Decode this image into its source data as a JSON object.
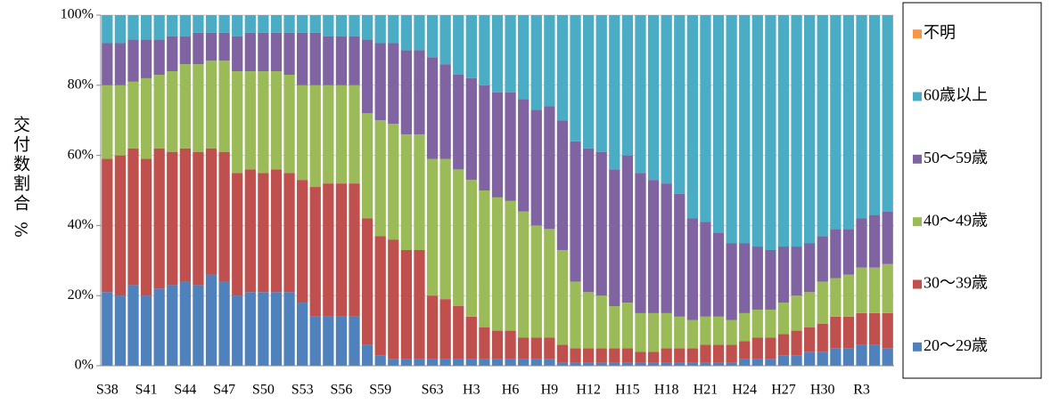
{
  "chart_data": {
    "type": "stacked-bar",
    "y_label": "交付数割合 %",
    "categories": [
      "S38",
      null,
      null,
      "S41",
      null,
      null,
      "S44",
      null,
      null,
      "S47",
      null,
      null,
      "S50",
      null,
      null,
      "S53",
      null,
      null,
      "S56",
      null,
      null,
      "S59",
      null,
      null,
      null,
      "S63",
      null,
      null,
      "H3",
      null,
      null,
      "H6",
      null,
      null,
      "H9",
      null,
      null,
      "H12",
      null,
      null,
      "H15",
      null,
      null,
      "H18",
      null,
      null,
      "H21",
      null,
      null,
      "H24",
      null,
      null,
      "H27",
      null,
      null,
      "H30",
      null,
      null,
      "R3",
      null,
      null
    ],
    "series": [
      {
        "name": "20～29歳",
        "color": "#4f81bd",
        "values": [
          21,
          20,
          23,
          20,
          22,
          23,
          24,
          23,
          26,
          24,
          20,
          21,
          21,
          21,
          21,
          18,
          14,
          14,
          14,
          14,
          6,
          3,
          2,
          2,
          2,
          2,
          2,
          2,
          2,
          2,
          2,
          2,
          2,
          2,
          2,
          1,
          1,
          1,
          1,
          1,
          1,
          1,
          1,
          1,
          1,
          1,
          1,
          1,
          1,
          2,
          2,
          2,
          3,
          3,
          4,
          4,
          5,
          5,
          6,
          6,
          5
        ]
      },
      {
        "name": "30～39歳",
        "color": "#c0504d",
        "values": [
          38,
          40,
          39,
          39,
          40,
          38,
          38,
          38,
          36,
          37,
          35,
          35,
          34,
          35,
          34,
          35,
          37,
          38,
          38,
          38,
          36,
          34,
          34,
          31,
          31,
          18,
          17,
          15,
          12,
          9,
          8,
          8,
          6,
          6,
          6,
          5,
          4,
          4,
          4,
          4,
          4,
          3,
          3,
          4,
          4,
          4,
          5,
          5,
          5,
          5,
          6,
          6,
          6,
          7,
          7,
          8,
          9,
          9,
          9,
          9,
          10
        ]
      },
      {
        "name": "40～49歳",
        "color": "#9bbb59",
        "values": [
          21,
          20,
          19,
          23,
          21,
          23,
          24,
          25,
          25,
          26,
          29,
          28,
          29,
          28,
          28,
          27,
          29,
          28,
          28,
          28,
          30,
          33,
          33,
          33,
          33,
          39,
          40,
          39,
          39,
          39,
          38,
          37,
          36,
          32,
          31,
          27,
          19,
          16,
          15,
          12,
          13,
          11,
          11,
          10,
          9,
          8,
          8,
          8,
          7,
          8,
          8,
          8,
          9,
          10,
          10,
          12,
          11,
          12,
          13,
          13,
          14
        ]
      },
      {
        "name": "50～59歳",
        "color": "#8064a2",
        "values": [
          12,
          12,
          12,
          11,
          10,
          10,
          8,
          9,
          8,
          8,
          10,
          11,
          11,
          11,
          12,
          15,
          15,
          14,
          14,
          14,
          21,
          22,
          23,
          24,
          24,
          29,
          27,
          27,
          29,
          30,
          30,
          31,
          32,
          33,
          35,
          37,
          40,
          41,
          41,
          39,
          42,
          40,
          38,
          37,
          35,
          29,
          27,
          24,
          22,
          20,
          18,
          17,
          16,
          14,
          14,
          13,
          14,
          13,
          14,
          15,
          15
        ]
      },
      {
        "name": "60歳以上",
        "color": "#4bacc6",
        "values": [
          8,
          8,
          7,
          7,
          7,
          6,
          6,
          5,
          5,
          5,
          6,
          5,
          5,
          5,
          5,
          5,
          5,
          6,
          6,
          6,
          7,
          8,
          8,
          10,
          10,
          12,
          14,
          17,
          18,
          20,
          22,
          22,
          24,
          27,
          26,
          30,
          36,
          38,
          39,
          44,
          40,
          45,
          47,
          48,
          51,
          58,
          59,
          62,
          65,
          65,
          66,
          67,
          66,
          66,
          65,
          63,
          61,
          61,
          58,
          57,
          56
        ]
      },
      {
        "name": "不明",
        "color": "#f79646",
        "values": [
          0,
          0,
          0,
          0,
          0,
          0,
          0,
          0,
          0,
          0,
          0,
          0,
          0,
          0,
          0,
          0,
          0,
          0,
          0,
          0,
          0,
          0,
          0,
          0,
          0,
          0,
          0,
          0,
          0,
          0,
          0,
          0,
          0,
          0,
          0,
          0,
          0,
          0,
          0,
          0,
          0,
          0,
          0,
          0,
          0,
          0,
          0,
          0,
          0,
          0,
          0,
          0,
          0,
          0,
          0,
          0,
          0,
          0,
          0,
          0,
          0
        ]
      }
    ],
    "ylim": [
      0,
      100
    ],
    "yticks": [
      {
        "value": 0,
        "label": "0%"
      },
      {
        "value": 20,
        "label": "20%"
      },
      {
        "value": 40,
        "label": "40%"
      },
      {
        "value": 60,
        "label": "60%"
      },
      {
        "value": 80,
        "label": "80%"
      },
      {
        "value": 100,
        "label": "100%"
      }
    ],
    "grid": true,
    "legend": "right"
  }
}
